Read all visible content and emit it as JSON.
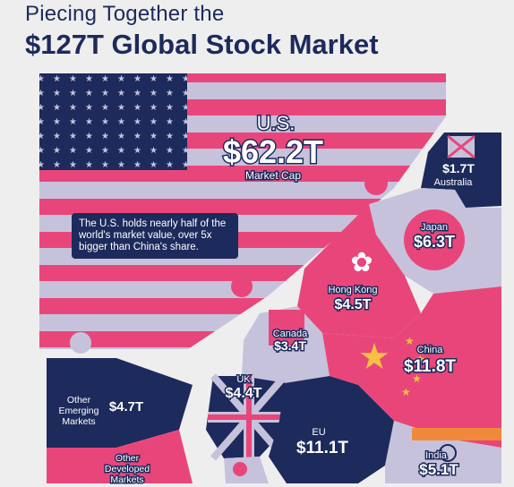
{
  "header": {
    "subtitle": "Piecing Together the",
    "title": "$127T Global Stock Market"
  },
  "us": {
    "name": "U.S.",
    "value": "$62.2T",
    "caption": "Market Cap",
    "note": "The U.S. holds nearly half of the world's market value, over 5x bigger than China's share."
  },
  "markets": [
    {
      "name": "Australia",
      "value": "$1.7T"
    },
    {
      "name": "Japan",
      "value": "$6.3T"
    },
    {
      "name": "Hong Kong",
      "value": "$4.5T"
    },
    {
      "name": "Canada",
      "value": "$3.4T"
    },
    {
      "name": "China",
      "value": "$11.8T"
    },
    {
      "name": "UK",
      "value": "$4.4T"
    },
    {
      "name": "EU",
      "value": "$11.1T"
    },
    {
      "name": "India",
      "value": "$5.1T"
    },
    {
      "name": "Other Emerging Markets",
      "value": "$4.7T"
    },
    {
      "name": "Other Developed Markets",
      "value": ""
    }
  ],
  "colors": {
    "navy": "#1d2a5c",
    "pink": "#e8467a",
    "red": "#d9214a",
    "lavender": "#c7c2dc",
    "background": "#eeeeee"
  }
}
